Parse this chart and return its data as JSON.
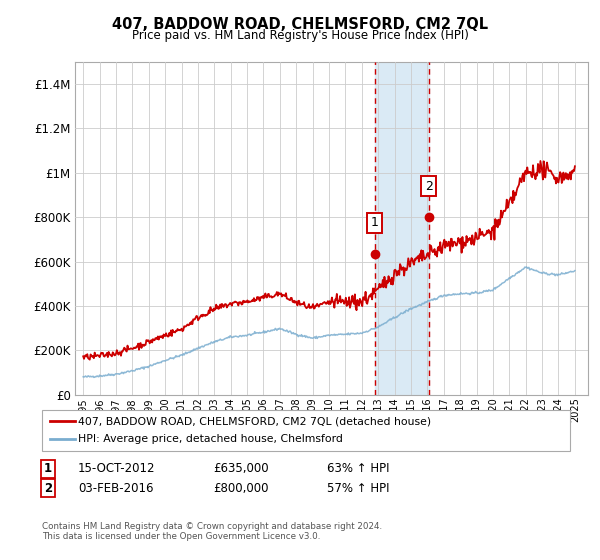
{
  "title": "407, BADDOW ROAD, CHELMSFORD, CM2 7QL",
  "subtitle": "Price paid vs. HM Land Registry's House Price Index (HPI)",
  "legend_line1": "407, BADDOW ROAD, CHELMSFORD, CM2 7QL (detached house)",
  "legend_line2": "HPI: Average price, detached house, Chelmsford",
  "transaction1_date": "15-OCT-2012",
  "transaction1_price": "£635,000",
  "transaction1_hpi": "63% ↑ HPI",
  "transaction2_date": "03-FEB-2016",
  "transaction2_price": "£800,000",
  "transaction2_hpi": "57% ↑ HPI",
  "copyright": "Contains HM Land Registry data © Crown copyright and database right 2024.\nThis data is licensed under the Open Government Licence v3.0.",
  "red_color": "#cc0000",
  "blue_color": "#7aadcf",
  "shade_color": "#daeaf5",
  "vline_color": "#cc0000",
  "grid_color": "#cccccc",
  "bg_color": "#ffffff",
  "ylim": [
    0,
    1500000
  ],
  "yticks": [
    0,
    200000,
    400000,
    600000,
    800000,
    1000000,
    1200000,
    1400000
  ],
  "ytick_labels": [
    "£0",
    "£200K",
    "£400K",
    "£600K",
    "£800K",
    "£1M",
    "£1.2M",
    "£1.4M"
  ],
  "vline1_year": 2012.79,
  "vline2_year": 2016.09,
  "marker1_price": 635000,
  "marker2_price": 800000,
  "xlim_start": 1994.5,
  "xlim_end": 2025.8
}
